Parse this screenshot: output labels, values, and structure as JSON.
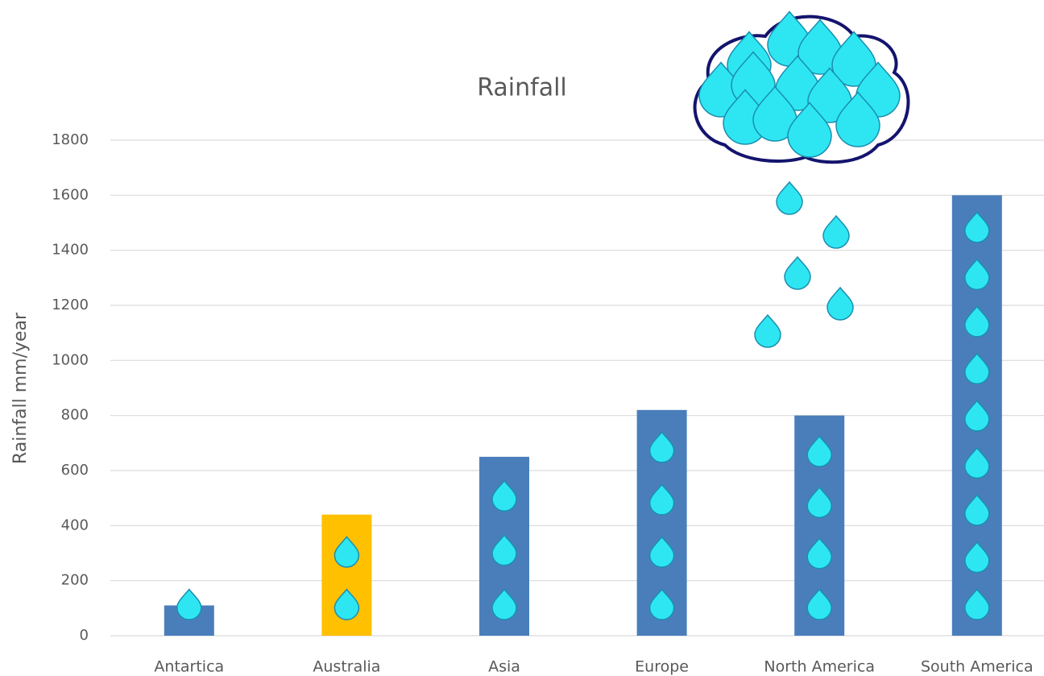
{
  "chart_data": {
    "type": "bar",
    "title": "Rainfall",
    "y_label": "Rainfall mm/year",
    "categories": [
      "Antartica",
      "Australia",
      "Asia",
      "Europe",
      "North America",
      "South America"
    ],
    "values": [
      110,
      440,
      650,
      820,
      800,
      1600
    ],
    "colors": [
      "#4a7ebb",
      "#ffc000",
      "#4a7ebb",
      "#4a7ebb",
      "#4a7ebb",
      "#4a7ebb"
    ],
    "ylim": [
      0,
      1800
    ],
    "yticks": [
      0,
      200,
      400,
      600,
      800,
      1000,
      1200,
      1400,
      1600,
      1800
    ],
    "grid": true
  }
}
